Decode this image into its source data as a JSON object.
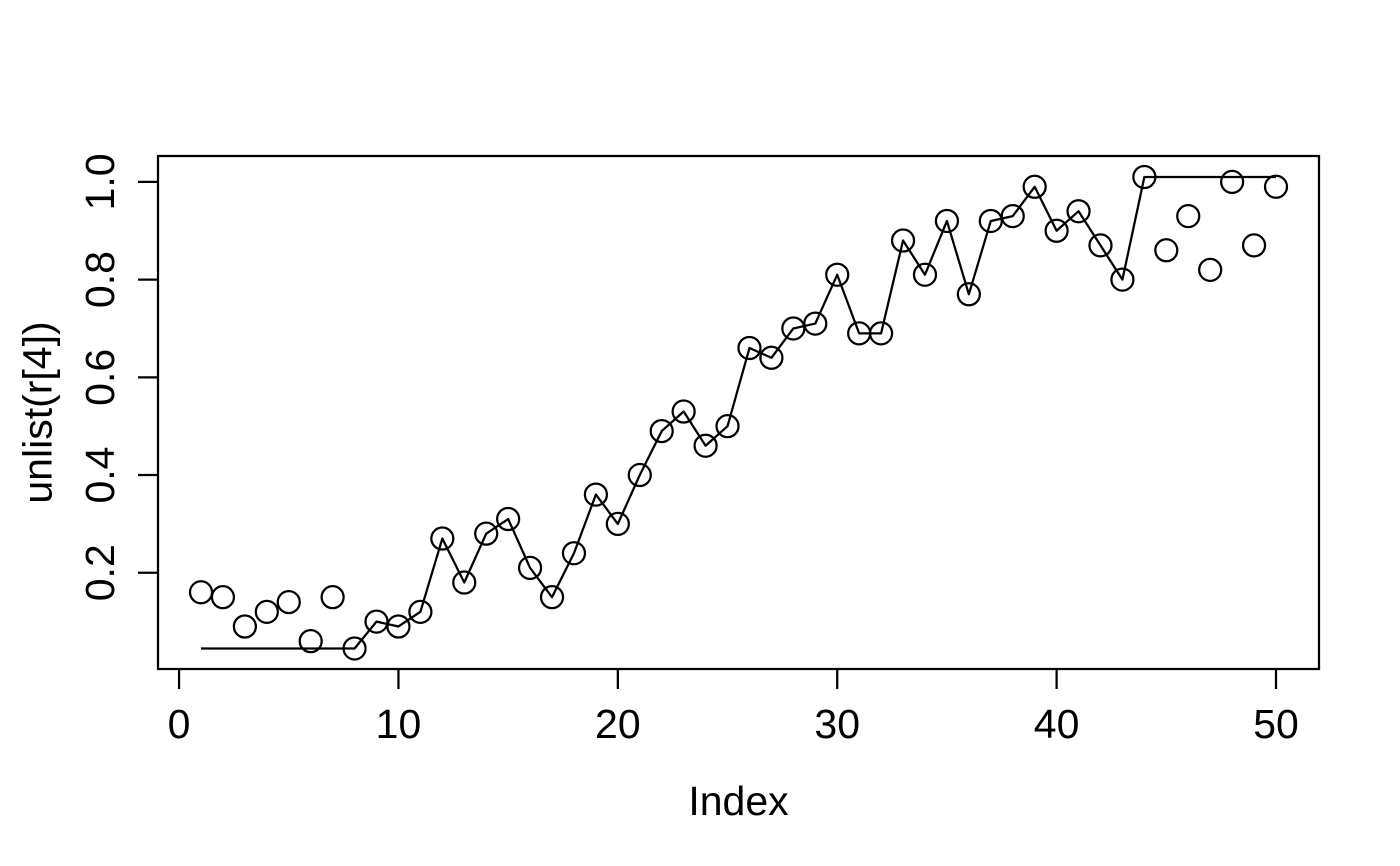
{
  "chart_data": {
    "type": "scatter",
    "title": "",
    "xlabel": "Index",
    "ylabel": "unlist(r[4])",
    "grid": false,
    "legend": null,
    "marker": "open-circle",
    "foreground": "#000000",
    "background": "#ffffff",
    "xlim": [
      -0.96,
      51.96
    ],
    "ylim": [
      0.003,
      1.053
    ],
    "x_ticks": [
      {
        "v": 0,
        "label": "0"
      },
      {
        "v": 10,
        "label": "10"
      },
      {
        "v": 20,
        "label": "20"
      },
      {
        "v": 30,
        "label": "30"
      },
      {
        "v": 40,
        "label": "40"
      },
      {
        "v": 50,
        "label": "50"
      }
    ],
    "y_ticks": [
      {
        "v": 0.2,
        "label": "0.2"
      },
      {
        "v": 0.4,
        "label": "0.4"
      },
      {
        "v": 0.6,
        "label": "0.6"
      },
      {
        "v": 0.8,
        "label": "0.8"
      },
      {
        "v": 1.0,
        "label": "1.0"
      }
    ],
    "x": [
      1,
      2,
      3,
      4,
      5,
      6,
      7,
      8,
      9,
      10,
      11,
      12,
      13,
      14,
      15,
      16,
      17,
      18,
      19,
      20,
      21,
      22,
      23,
      24,
      25,
      26,
      27,
      28,
      29,
      30,
      31,
      32,
      33,
      34,
      35,
      36,
      37,
      38,
      39,
      40,
      41,
      42,
      43,
      44,
      45,
      46,
      47,
      48,
      49,
      50
    ],
    "series": [
      {
        "name": "points",
        "type": "scatter",
        "values": [
          0.16,
          0.15,
          0.09,
          0.12,
          0.14,
          0.06,
          0.15,
          0.045,
          0.1,
          0.09,
          0.12,
          0.27,
          0.18,
          0.28,
          0.31,
          0.21,
          0.15,
          0.24,
          0.36,
          0.3,
          0.4,
          0.49,
          0.53,
          0.46,
          0.5,
          0.66,
          0.64,
          0.7,
          0.71,
          0.81,
          0.69,
          0.69,
          0.88,
          0.81,
          0.92,
          0.77,
          0.92,
          0.93,
          0.99,
          0.9,
          0.94,
          0.87,
          0.8,
          1.01,
          0.86,
          0.93,
          0.82,
          1.0,
          0.87,
          0.99
        ]
      },
      {
        "name": "line",
        "type": "line",
        "values": [
          0.045,
          0.045,
          0.045,
          0.045,
          0.045,
          0.045,
          0.045,
          0.045,
          0.1,
          0.09,
          0.12,
          0.27,
          0.18,
          0.28,
          0.31,
          0.21,
          0.15,
          0.24,
          0.36,
          0.3,
          0.4,
          0.49,
          0.53,
          0.46,
          0.5,
          0.66,
          0.64,
          0.7,
          0.71,
          0.81,
          0.69,
          0.69,
          0.88,
          0.81,
          0.92,
          0.77,
          0.92,
          0.93,
          0.99,
          0.9,
          0.94,
          0.87,
          0.8,
          1.01,
          1.01,
          1.01,
          1.01,
          1.01,
          1.01,
          1.01
        ]
      }
    ]
  }
}
